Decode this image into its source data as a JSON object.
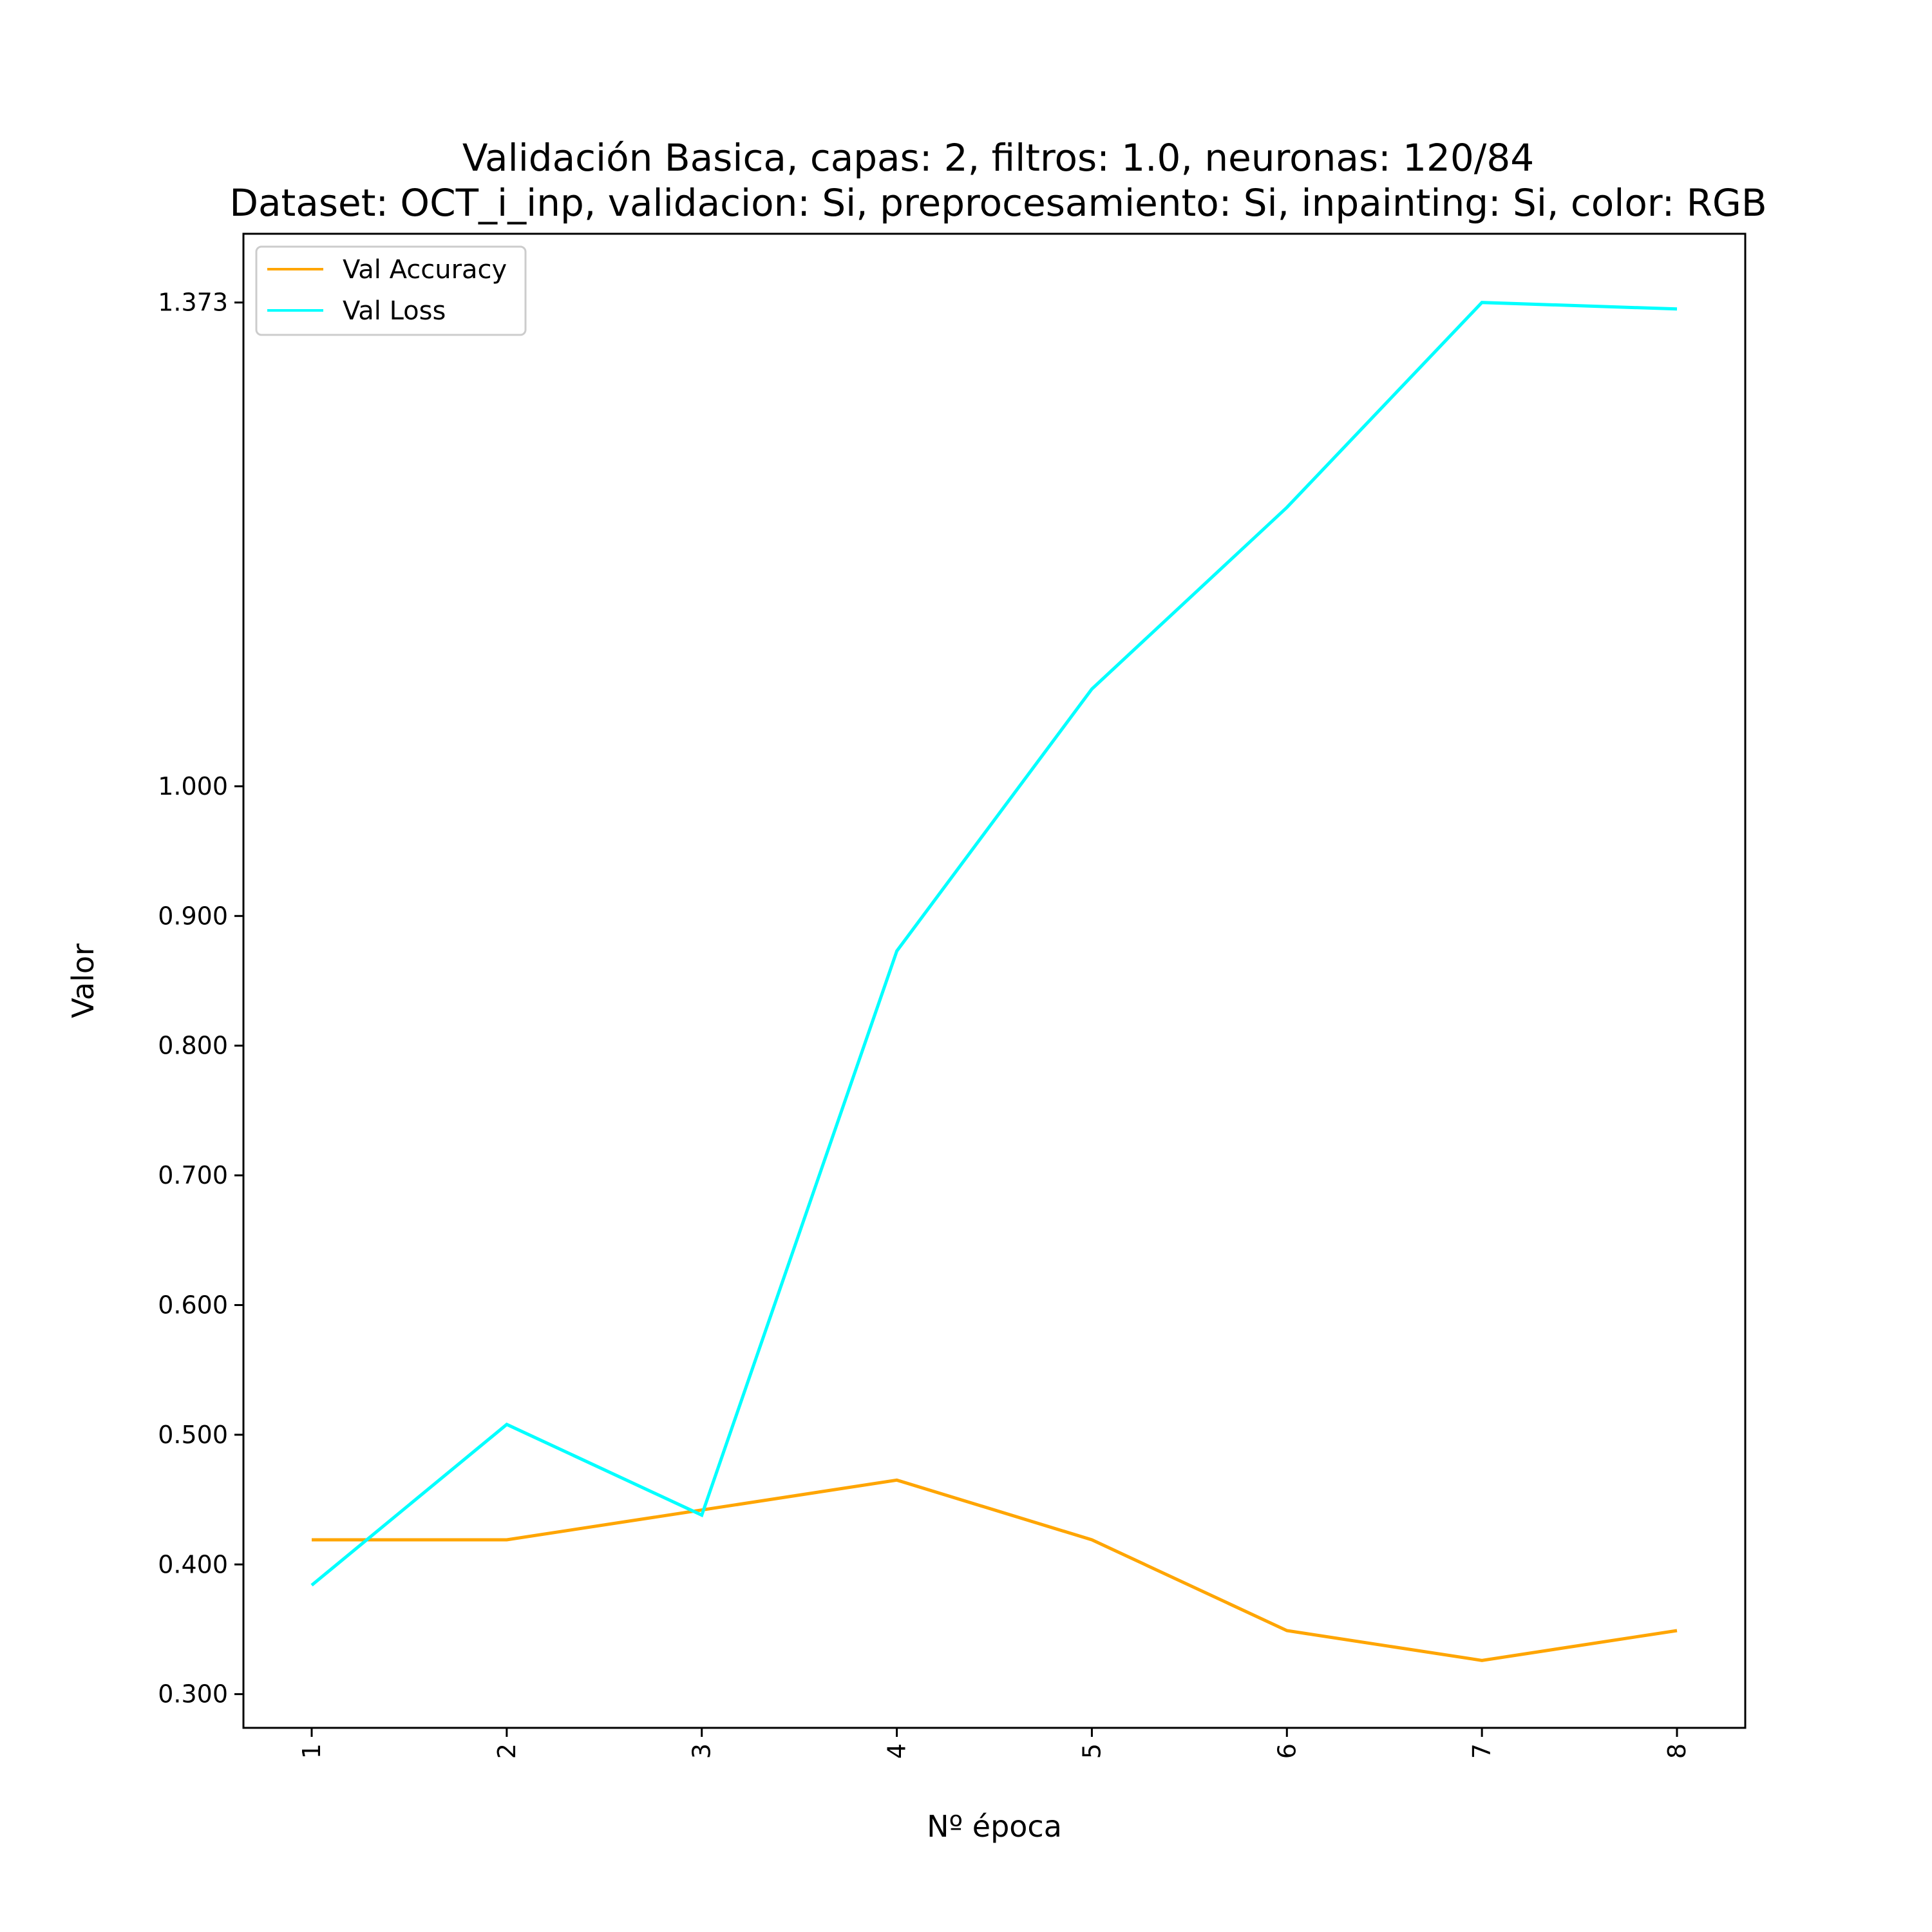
{
  "chart_data": {
    "type": "line",
    "title": "Validación Basica, capas: 2, filtros: 1.0, neuronas: 120/84",
    "subtitle": "Dataset: OCT_i_inp, validacion: Si, preprocesamiento: Si, inpainting: Si, color: RGB",
    "xlabel": "Nº época",
    "ylabel": "Valor",
    "x": [
      1,
      2,
      3,
      4,
      5,
      6,
      7,
      8
    ],
    "x_tick_labels": [
      "1",
      "2",
      "3",
      "4",
      "5",
      "6",
      "7",
      "8"
    ],
    "y_ticks": [
      0.3,
      0.4,
      0.5,
      0.6,
      0.7,
      0.8,
      0.9,
      1.0,
      1.373
    ],
    "y_tick_labels": [
      "0.300",
      "0.400",
      "0.500",
      "0.600",
      "0.700",
      "0.800",
      "0.900",
      "1.000",
      "1.373"
    ],
    "xlim": [
      0.65,
      8.35
    ],
    "ylim": [
      0.274,
      1.426
    ],
    "grid": false,
    "legend_position": "top-left",
    "series": [
      {
        "name": "Val Accuracy",
        "color": "#FFA500",
        "values": [
          0.419,
          0.419,
          0.442,
          0.465,
          0.419,
          0.349,
          0.326,
          0.349
        ]
      },
      {
        "name": "Val Loss",
        "color": "#00FFFF",
        "values": [
          0.384,
          0.508,
          0.438,
          0.873,
          1.075,
          1.215,
          1.373,
          1.368
        ]
      }
    ]
  }
}
